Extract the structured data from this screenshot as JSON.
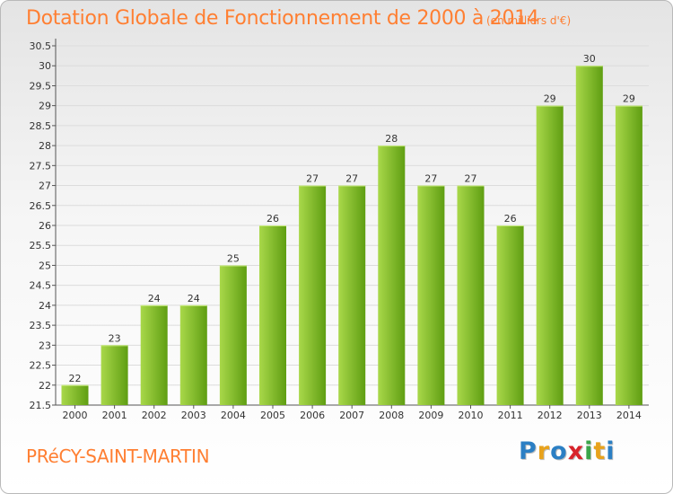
{
  "header": {
    "title": "Dotation Globale de Fonctionnement de 2000 à 2014",
    "unit": "(en milliers d'€)"
  },
  "footer": {
    "place": "PRéCY-SAINT-MARTIN",
    "logo_letters": [
      {
        "ch": "P",
        "color": "#2b7fc4"
      },
      {
        "ch": "r",
        "color": "#e8a21c"
      },
      {
        "ch": "o",
        "color": "#2b7fc4"
      },
      {
        "ch": "x",
        "color": "#d8232a"
      },
      {
        "ch": "i",
        "color": "#3aa54a"
      },
      {
        "ch": "t",
        "color": "#e8a21c"
      },
      {
        "ch": "i",
        "color": "#2b7fc4"
      }
    ]
  },
  "colors": {
    "bar_light": "#a9d84a",
    "bar_dark": "#5f9e12",
    "grid": "#dcdcdc",
    "accent": "#ff7f32"
  },
  "chart_data": {
    "type": "bar",
    "categories": [
      "2000",
      "2001",
      "2002",
      "2003",
      "2004",
      "2005",
      "2006",
      "2007",
      "2008",
      "2009",
      "2010",
      "2011",
      "2012",
      "2013",
      "2014"
    ],
    "values": [
      22,
      23,
      24,
      24,
      25,
      26,
      27,
      27,
      28,
      27,
      27,
      26,
      29,
      30,
      29
    ],
    "data_labels": [
      "22",
      "23",
      "24",
      "24",
      "25",
      "26",
      "27",
      "27",
      "28",
      "27",
      "27",
      "26",
      "29",
      "30",
      "29"
    ],
    "y_ticks": [
      "21.5",
      "22",
      "22.5",
      "23",
      "23.5",
      "24",
      "24.5",
      "25",
      "25.5",
      "26",
      "26.5",
      "27",
      "27.5",
      "28",
      "28.5",
      "29",
      "29.5",
      "30",
      "30.5"
    ],
    "ylim": [
      21.5,
      30.5
    ],
    "grid": true,
    "legend": "none"
  }
}
